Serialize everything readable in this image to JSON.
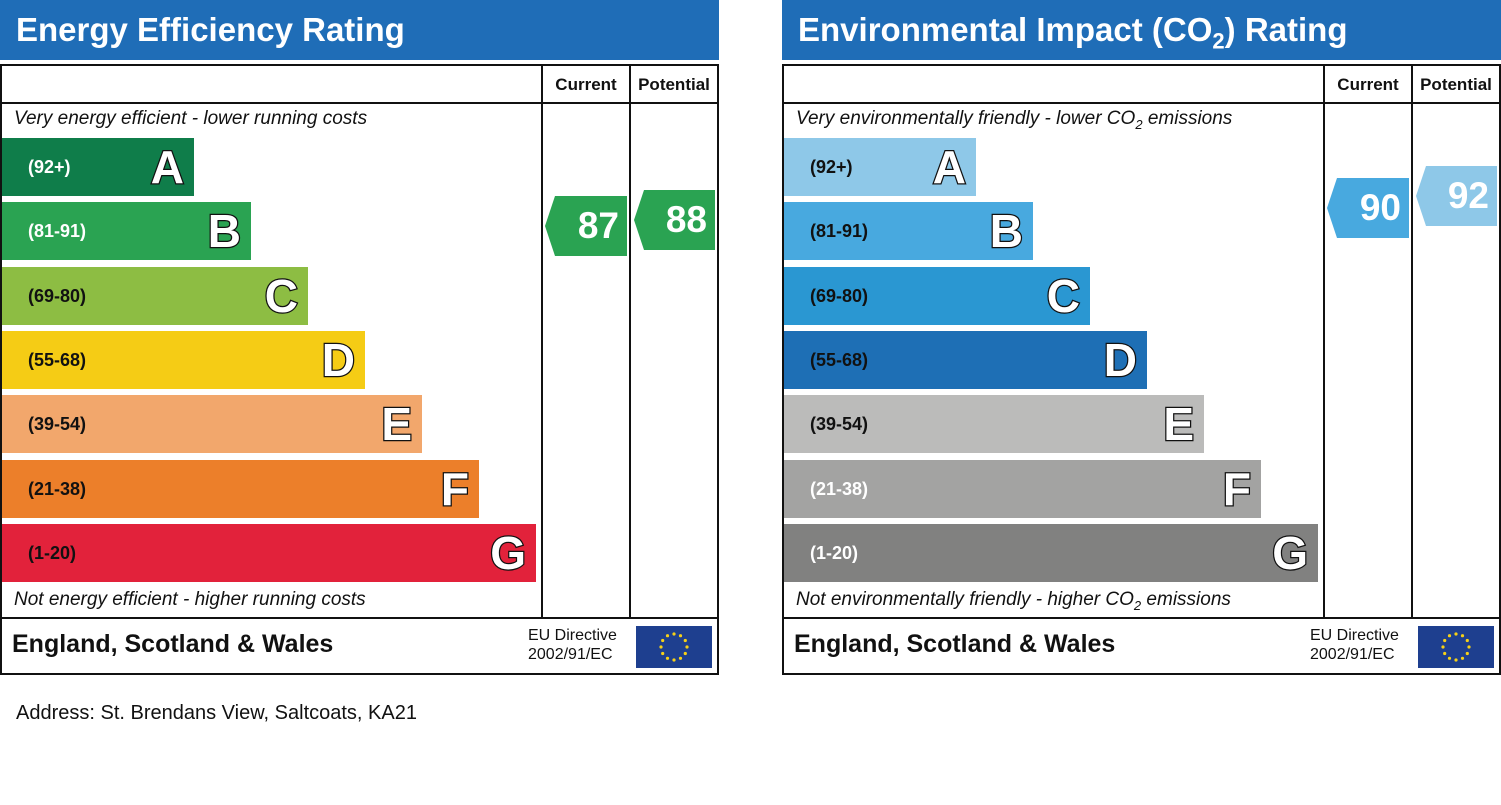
{
  "chart_data": [
    {
      "type": "bar",
      "title": "Energy Efficiency Rating",
      "column_headers": [
        "Current",
        "Potential"
      ],
      "scale_top": "Very energy efficient - lower running costs",
      "scale_bottom": "Not energy efficient - higher running costs",
      "bands": [
        {
          "range": "(92+)",
          "letter": "A",
          "color": "#0f7d4a",
          "range_color": "#ffffff"
        },
        {
          "range": "(81-91)",
          "letter": "B",
          "color": "#2aa352",
          "range_color": "#ffffff"
        },
        {
          "range": "(69-80)",
          "letter": "C",
          "color": "#8dbd43",
          "range_color": "#111111"
        },
        {
          "range": "(55-68)",
          "letter": "D",
          "color": "#f5cc15",
          "range_color": "#111111"
        },
        {
          "range": "(39-54)",
          "letter": "E",
          "color": "#f2a76c",
          "range_color": "#111111"
        },
        {
          "range": "(21-38)",
          "letter": "F",
          "color": "#ec7f2a",
          "range_color": "#111111"
        },
        {
          "range": "(1-20)",
          "letter": "G",
          "color": "#e2223b",
          "range_color": "#111111"
        }
      ],
      "current": {
        "value": 87,
        "color": "#2aa352"
      },
      "potential": {
        "value": 88,
        "color": "#2aa352"
      },
      "footer_country": "England, Scotland & Wales",
      "footer_directive_line1": "EU Directive",
      "footer_directive_line2": "2002/91/EC"
    },
    {
      "type": "bar",
      "title_main": "Environmental Impact (CO",
      "title_sub": "2",
      "title_end": ") Rating",
      "column_headers": [
        "Current",
        "Potential"
      ],
      "scale_top_main": "Very environmentally friendly - lower CO",
      "scale_top_sub": "2",
      "scale_top_end": " emissions",
      "scale_bottom_main": "Not environmentally friendly - higher CO",
      "scale_bottom_sub": "2",
      "scale_bottom_end": " emissions",
      "bands": [
        {
          "range": "(92+)",
          "letter": "A",
          "color": "#8ec8e8",
          "range_color": "#111111"
        },
        {
          "range": "(81-91)",
          "letter": "B",
          "color": "#48a9df",
          "range_color": "#111111"
        },
        {
          "range": "(69-80)",
          "letter": "C",
          "color": "#2a97d2",
          "range_color": "#111111"
        },
        {
          "range": "(55-68)",
          "letter": "D",
          "color": "#1e6fb5",
          "range_color": "#111111"
        },
        {
          "range": "(39-54)",
          "letter": "E",
          "color": "#bbbbba",
          "range_color": "#111111"
        },
        {
          "range": "(21-38)",
          "letter": "F",
          "color": "#a3a3a2",
          "range_color": "#ffffff"
        },
        {
          "range": "(1-20)",
          "letter": "G",
          "color": "#818180",
          "range_color": "#ffffff"
        }
      ],
      "current": {
        "value": 90,
        "color": "#48a9df"
      },
      "potential": {
        "value": 92,
        "color": "#8ec8e8"
      },
      "footer_country": "England, Scotland & Wales",
      "footer_directive_line1": "EU Directive",
      "footer_directive_line2": "2002/91/EC"
    }
  ],
  "address": "Address: St. Brendans View, Saltcoats, KA21"
}
